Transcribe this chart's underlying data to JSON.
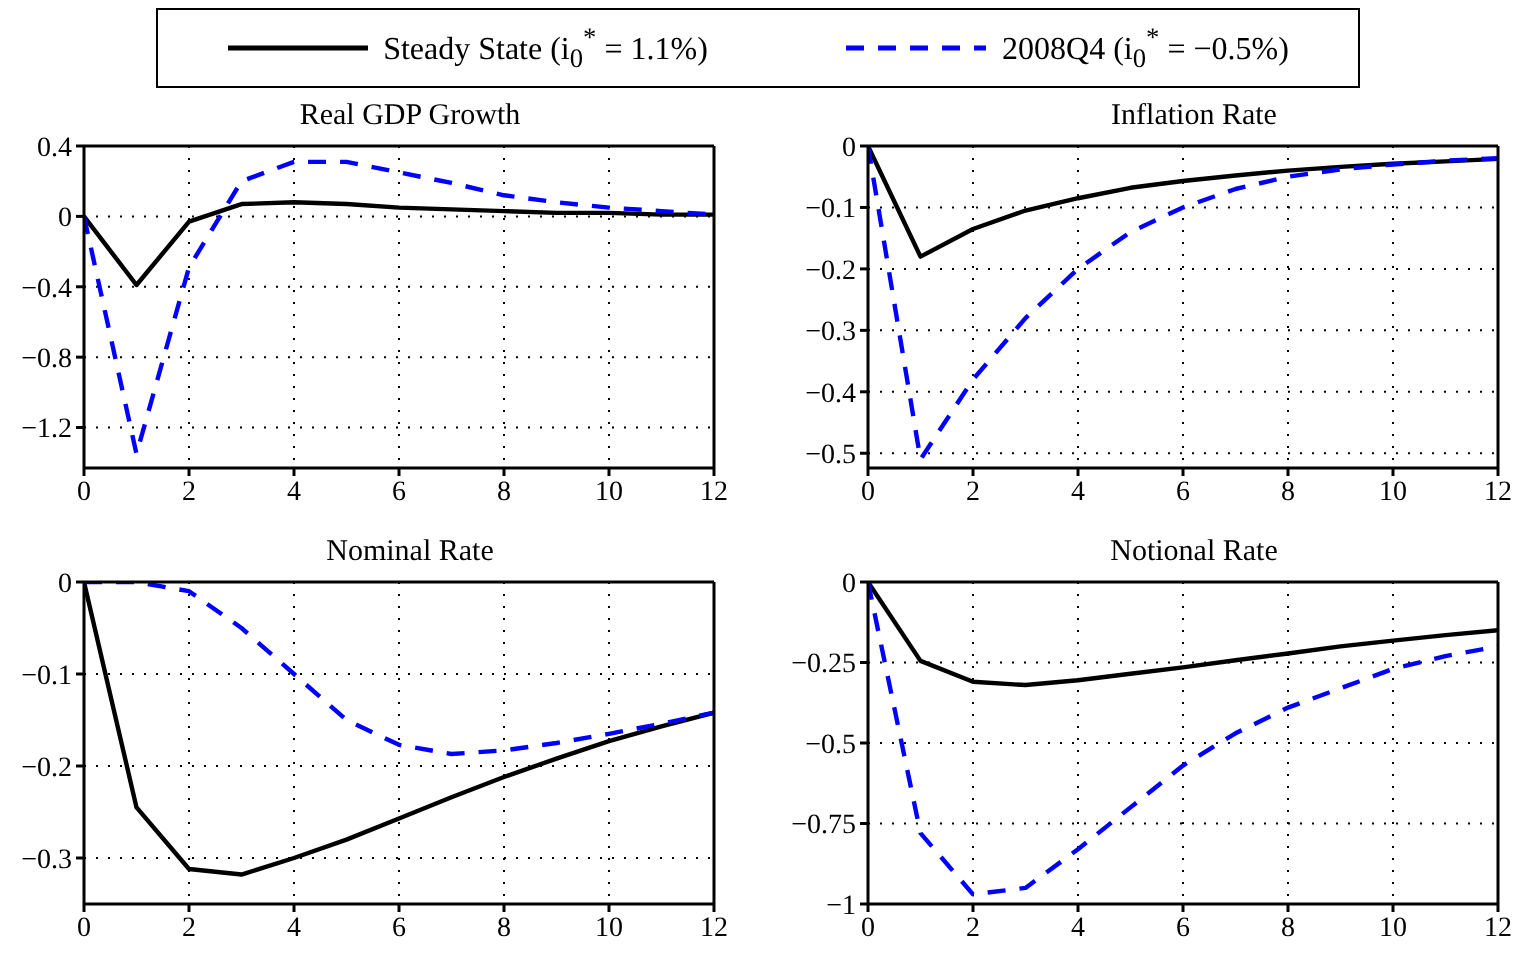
{
  "chart_data": [
    {
      "type": "line",
      "title": "Real GDP Growth",
      "x": [
        0,
        1,
        2,
        3,
        4,
        5,
        6,
        7,
        8,
        9,
        10,
        11,
        12
      ],
      "xlim": [
        0,
        12
      ],
      "xticks": [
        0,
        2,
        4,
        6,
        8,
        10,
        12
      ],
      "ylim": [
        -1.43,
        0.4
      ],
      "yticks": [
        -1.2,
        -0.8,
        -0.4,
        0,
        0.4
      ],
      "grid": true,
      "legend": "top",
      "marker": "none",
      "series": [
        {
          "name": "Steady State (i$_{0}$$^{*}$ = 1.1%)",
          "color": "#000000",
          "line_style": "solid",
          "values": [
            0,
            -0.39,
            -0.03,
            0.07,
            0.08,
            0.07,
            0.05,
            0.04,
            0.03,
            0.02,
            0.02,
            0.01,
            0.01
          ]
        },
        {
          "name": "2008Q4 (i$_{0}$$^{*}$ = −0.5%)",
          "color": "#0000ff",
          "line_style": "dashed",
          "values": [
            0,
            -1.35,
            -0.29,
            0.2,
            0.31,
            0.31,
            0.25,
            0.19,
            0.12,
            0.08,
            0.05,
            0.03,
            0.01
          ]
        }
      ]
    },
    {
      "type": "line",
      "title": "Inflation Rate",
      "x": [
        0,
        1,
        2,
        3,
        4,
        5,
        6,
        7,
        8,
        9,
        10,
        11,
        12
      ],
      "xlim": [
        0,
        12
      ],
      "xticks": [
        0,
        2,
        4,
        6,
        8,
        10,
        12
      ],
      "ylim": [
        -0.524,
        0
      ],
      "yticks": [
        -0.5,
        -0.4,
        -0.3,
        -0.2,
        -0.1,
        0
      ],
      "grid": true,
      "marker": "none",
      "series": [
        {
          "color": "#000000",
          "line_style": "solid",
          "values": [
            0,
            -0.18,
            -0.135,
            -0.105,
            -0.085,
            -0.068,
            -0.057,
            -0.048,
            -0.04,
            -0.034,
            -0.029,
            -0.025,
            -0.021
          ]
        },
        {
          "color": "#0000ff",
          "line_style": "dashed",
          "values": [
            0,
            -0.51,
            -0.38,
            -0.28,
            -0.2,
            -0.14,
            -0.1,
            -0.07,
            -0.05,
            -0.038,
            -0.03,
            -0.024,
            -0.02
          ]
        }
      ]
    },
    {
      "type": "line",
      "title": "Nominal Rate",
      "x": [
        0,
        1,
        2,
        3,
        4,
        5,
        6,
        7,
        8,
        9,
        10,
        11,
        12
      ],
      "xlim": [
        0,
        12
      ],
      "xticks": [
        0,
        2,
        4,
        6,
        8,
        10,
        12
      ],
      "ylim": [
        -0.35,
        0
      ],
      "yticks": [
        -0.3,
        -0.2,
        -0.1,
        0
      ],
      "grid": true,
      "marker": "none",
      "series": [
        {
          "color": "#000000",
          "line_style": "solid",
          "values": [
            0,
            -0.245,
            -0.312,
            -0.318,
            -0.3,
            -0.28,
            -0.257,
            -0.234,
            -0.212,
            -0.192,
            -0.173,
            -0.157,
            -0.142
          ]
        },
        {
          "color": "#0000ff",
          "line_style": "dashed",
          "values": [
            0,
            0,
            -0.01,
            -0.05,
            -0.1,
            -0.15,
            -0.177,
            -0.187,
            -0.183,
            -0.175,
            -0.165,
            -0.154,
            -0.142
          ]
        }
      ]
    },
    {
      "type": "line",
      "title": "Notional Rate",
      "x": [
        0,
        1,
        2,
        3,
        4,
        5,
        6,
        7,
        8,
        9,
        10,
        11,
        12
      ],
      "xlim": [
        0,
        12
      ],
      "xticks": [
        0,
        2,
        4,
        6,
        8,
        10,
        12
      ],
      "ylim": [
        -1,
        0
      ],
      "yticks": [
        -1,
        -0.75,
        -0.5,
        -0.25,
        0
      ],
      "grid": true,
      "marker": "none",
      "series": [
        {
          "color": "#000000",
          "line_style": "solid",
          "values": [
            0,
            -0.245,
            -0.31,
            -0.32,
            -0.305,
            -0.285,
            -0.265,
            -0.243,
            -0.222,
            -0.2,
            -0.182,
            -0.165,
            -0.15
          ]
        },
        {
          "color": "#0000ff",
          "line_style": "dashed",
          "values": [
            0,
            -0.78,
            -0.97,
            -0.95,
            -0.83,
            -0.7,
            -0.57,
            -0.47,
            -0.39,
            -0.33,
            -0.27,
            -0.23,
            -0.2
          ]
        }
      ]
    }
  ]
}
